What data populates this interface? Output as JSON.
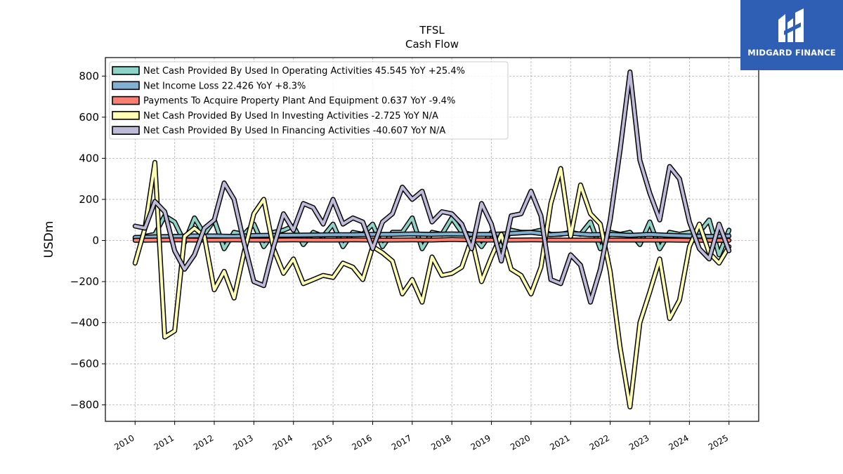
{
  "chart_data": {
    "type": "line",
    "title": "TFSL",
    "subtitle": "Cash Flow",
    "ylabel": "USDm",
    "xlabel": "",
    "ylim": [
      -880,
      890
    ],
    "xlim": [
      2009.25,
      2025.75
    ],
    "yticks": [
      -800,
      -600,
      -400,
      -200,
      0,
      200,
      400,
      600,
      800
    ],
    "ytick_labels": [
      "−800",
      "−600",
      "−400",
      "−200",
      "0",
      "200",
      "400",
      "600",
      "800"
    ],
    "xticks": [
      2010,
      2011,
      2012,
      2013,
      2014,
      2015,
      2016,
      2017,
      2018,
      2019,
      2020,
      2021,
      2022,
      2023,
      2024,
      2025
    ],
    "xtick_labels": [
      "2010",
      "2011",
      "2012",
      "2013",
      "2014",
      "2015",
      "2016",
      "2017",
      "2018",
      "2019",
      "2020",
      "2021",
      "2022",
      "2023",
      "2024",
      "2025"
    ],
    "grid": true,
    "legend_position": "top-left",
    "series": [
      {
        "name": "Net Cash Provided By Used In Operating Activities",
        "legend": "Net Cash Provided By Used In Operating Activities  45.545 YoY +25.4%",
        "color": "#8dd3c7",
        "points": [
          [
            2010,
            10
          ],
          [
            2010.25,
            20
          ],
          [
            2010.5,
            30
          ],
          [
            2010.75,
            120
          ],
          [
            2011,
            90
          ],
          [
            2011.25,
            -10
          ],
          [
            2011.5,
            110
          ],
          [
            2011.75,
            30
          ],
          [
            2012,
            100
          ],
          [
            2012.25,
            -40
          ],
          [
            2012.5,
            40
          ],
          [
            2012.75,
            30
          ],
          [
            2013,
            80
          ],
          [
            2013.25,
            -30
          ],
          [
            2013.5,
            40
          ],
          [
            2013.75,
            50
          ],
          [
            2014,
            70
          ],
          [
            2014.25,
            -20
          ],
          [
            2014.5,
            40
          ],
          [
            2014.75,
            20
          ],
          [
            2015,
            80
          ],
          [
            2015.25,
            -30
          ],
          [
            2015.5,
            40
          ],
          [
            2015.75,
            30
          ],
          [
            2016,
            80
          ],
          [
            2016.25,
            -30
          ],
          [
            2016.5,
            40
          ],
          [
            2016.75,
            40
          ],
          [
            2017,
            110
          ],
          [
            2017.25,
            -40
          ],
          [
            2017.5,
            40
          ],
          [
            2017.75,
            30
          ],
          [
            2018,
            110
          ],
          [
            2018.25,
            40
          ],
          [
            2018.5,
            30
          ],
          [
            2018.75,
            -30
          ],
          [
            2019,
            40
          ],
          [
            2019.25,
            -30
          ],
          [
            2019.5,
            50
          ],
          [
            2019.75,
            40
          ],
          [
            2020,
            40
          ],
          [
            2020.25,
            50
          ],
          [
            2020.5,
            30
          ],
          [
            2020.75,
            30
          ],
          [
            2021,
            40
          ],
          [
            2021.25,
            30
          ],
          [
            2021.5,
            90
          ],
          [
            2021.75,
            -40
          ],
          [
            2022,
            40
          ],
          [
            2022.25,
            30
          ],
          [
            2022.5,
            40
          ],
          [
            2022.75,
            -20
          ],
          [
            2023,
            90
          ],
          [
            2023.25,
            -40
          ],
          [
            2023.5,
            40
          ],
          [
            2023.75,
            30
          ],
          [
            2024,
            40
          ],
          [
            2024.25,
            40
          ],
          [
            2024.5,
            100
          ],
          [
            2024.75,
            -70
          ],
          [
            2025,
            50
          ]
        ]
      },
      {
        "name": "Net Income Loss",
        "legend": "Net Income Loss  22.426 YoY +8.3%",
        "color": "#80b1d3",
        "points": [
          [
            2010,
            15
          ],
          [
            2010.5,
            18
          ],
          [
            2011,
            20
          ],
          [
            2011.5,
            22
          ],
          [
            2012,
            22
          ],
          [
            2012.5,
            20
          ],
          [
            2013,
            24
          ],
          [
            2013.5,
            25
          ],
          [
            2014,
            26
          ],
          [
            2014.5,
            27
          ],
          [
            2015,
            28
          ],
          [
            2015.5,
            28
          ],
          [
            2016,
            30
          ],
          [
            2016.5,
            30
          ],
          [
            2017,
            32
          ],
          [
            2017.5,
            30
          ],
          [
            2018,
            32
          ],
          [
            2018.5,
            30
          ],
          [
            2019,
            30
          ],
          [
            2019.5,
            34
          ],
          [
            2020,
            40
          ],
          [
            2020.5,
            28
          ],
          [
            2021,
            35
          ],
          [
            2021.5,
            28
          ],
          [
            2022,
            30
          ],
          [
            2022.5,
            25
          ],
          [
            2023,
            30
          ],
          [
            2023.5,
            25
          ],
          [
            2024,
            22
          ],
          [
            2024.5,
            20
          ],
          [
            2025,
            22
          ]
        ]
      },
      {
        "name": "Payments To Acquire Property Plant And Equipment",
        "legend": "Payments To Acquire Property Plant And Equipment  0.637 YoY -9.4%",
        "color": "#fb8072",
        "points": [
          [
            2010,
            1
          ],
          [
            2010.5,
            2
          ],
          [
            2011,
            3
          ],
          [
            2011.5,
            2
          ],
          [
            2012,
            2
          ],
          [
            2012.5,
            3
          ],
          [
            2013,
            2
          ],
          [
            2013.5,
            2
          ],
          [
            2014,
            3
          ],
          [
            2014.5,
            2
          ],
          [
            2015,
            2
          ],
          [
            2015.5,
            3
          ],
          [
            2016,
            2
          ],
          [
            2016.5,
            2
          ],
          [
            2017,
            3
          ],
          [
            2017.5,
            2
          ],
          [
            2018,
            5
          ],
          [
            2018.5,
            3
          ],
          [
            2019,
            2
          ],
          [
            2019.5,
            2
          ],
          [
            2020,
            3
          ],
          [
            2020.5,
            2
          ],
          [
            2021,
            2
          ],
          [
            2021.5,
            2
          ],
          [
            2022,
            2
          ],
          [
            2022.5,
            2
          ],
          [
            2023,
            2
          ],
          [
            2023.5,
            2
          ],
          [
            2024,
            1
          ],
          [
            2024.5,
            1
          ],
          [
            2025,
            1
          ]
        ]
      },
      {
        "name": "Net Cash Provided By Used In Investing Activities",
        "legend": "Net Cash Provided By Used In Investing Activities  -2.725 YoY N/A",
        "color": "#ffffb3",
        "points": [
          [
            2010,
            -110
          ],
          [
            2010.25,
            60
          ],
          [
            2010.5,
            380
          ],
          [
            2010.75,
            -470
          ],
          [
            2011,
            -440
          ],
          [
            2011.25,
            20
          ],
          [
            2011.5,
            60
          ],
          [
            2011.75,
            20
          ],
          [
            2012,
            -240
          ],
          [
            2012.25,
            -150
          ],
          [
            2012.5,
            -280
          ],
          [
            2012.75,
            -60
          ],
          [
            2013,
            130
          ],
          [
            2013.25,
            200
          ],
          [
            2013.5,
            -40
          ],
          [
            2013.75,
            -160
          ],
          [
            2014,
            -90
          ],
          [
            2014.25,
            -210
          ],
          [
            2014.5,
            -190
          ],
          [
            2014.75,
            -170
          ],
          [
            2015,
            -180
          ],
          [
            2015.25,
            -110
          ],
          [
            2015.5,
            -130
          ],
          [
            2015.75,
            -190
          ],
          [
            2016,
            -30
          ],
          [
            2016.25,
            -60
          ],
          [
            2016.5,
            -100
          ],
          [
            2016.75,
            -260
          ],
          [
            2017,
            -190
          ],
          [
            2017.25,
            -300
          ],
          [
            2017.5,
            -80
          ],
          [
            2017.75,
            -170
          ],
          [
            2018,
            -160
          ],
          [
            2018.25,
            -130
          ],
          [
            2018.5,
            10
          ],
          [
            2018.75,
            -200
          ],
          [
            2019,
            -80
          ],
          [
            2019.25,
            30
          ],
          [
            2019.5,
            -140
          ],
          [
            2019.75,
            -170
          ],
          [
            2020,
            -260
          ],
          [
            2020.25,
            -130
          ],
          [
            2020.5,
            180
          ],
          [
            2020.75,
            350
          ],
          [
            2021,
            20
          ],
          [
            2021.25,
            270
          ],
          [
            2021.5,
            130
          ],
          [
            2021.75,
            80
          ],
          [
            2022,
            -150
          ],
          [
            2022.25,
            -520
          ],
          [
            2022.5,
            -810
          ],
          [
            2022.75,
            -400
          ],
          [
            2023,
            -250
          ],
          [
            2023.25,
            -90
          ],
          [
            2023.5,
            -380
          ],
          [
            2023.75,
            -290
          ],
          [
            2024,
            -30
          ],
          [
            2024.25,
            80
          ],
          [
            2024.5,
            -60
          ],
          [
            2024.75,
            -110
          ],
          [
            2025,
            -30
          ]
        ]
      },
      {
        "name": "Net Cash Provided By Used In Financing Activities",
        "legend": "Net Cash Provided By Used In Financing Activities  -40.607 YoY N/A",
        "color": "#bebada",
        "points": [
          [
            2010,
            70
          ],
          [
            2010.25,
            60
          ],
          [
            2010.5,
            190
          ],
          [
            2010.75,
            140
          ],
          [
            2011,
            -50
          ],
          [
            2011.25,
            -140
          ],
          [
            2011.5,
            -70
          ],
          [
            2011.75,
            60
          ],
          [
            2012,
            100
          ],
          [
            2012.25,
            280
          ],
          [
            2012.5,
            200
          ],
          [
            2012.75,
            -10
          ],
          [
            2013,
            -200
          ],
          [
            2013.25,
            -220
          ],
          [
            2013.5,
            -30
          ],
          [
            2013.75,
            130
          ],
          [
            2014,
            50
          ],
          [
            2014.25,
            180
          ],
          [
            2014.5,
            160
          ],
          [
            2014.75,
            80
          ],
          [
            2015,
            200
          ],
          [
            2015.25,
            80
          ],
          [
            2015.5,
            110
          ],
          [
            2015.75,
            90
          ],
          [
            2016,
            -40
          ],
          [
            2016.25,
            90
          ],
          [
            2016.5,
            130
          ],
          [
            2016.75,
            260
          ],
          [
            2017,
            200
          ],
          [
            2017.25,
            240
          ],
          [
            2017.5,
            90
          ],
          [
            2017.75,
            140
          ],
          [
            2018,
            130
          ],
          [
            2018.25,
            80
          ],
          [
            2018.5,
            -40
          ],
          [
            2018.75,
            180
          ],
          [
            2019,
            80
          ],
          [
            2019.25,
            -100
          ],
          [
            2019.5,
            120
          ],
          [
            2019.75,
            130
          ],
          [
            2020,
            240
          ],
          [
            2020.25,
            120
          ],
          [
            2020.5,
            -190
          ],
          [
            2020.75,
            -210
          ],
          [
            2021,
            -70
          ],
          [
            2021.25,
            -120
          ],
          [
            2021.5,
            -300
          ],
          [
            2021.75,
            -140
          ],
          [
            2022,
            100
          ],
          [
            2022.25,
            440
          ],
          [
            2022.5,
            820
          ],
          [
            2022.75,
            390
          ],
          [
            2023,
            230
          ],
          [
            2023.25,
            100
          ],
          [
            2023.5,
            360
          ],
          [
            2023.75,
            300
          ],
          [
            2024,
            90
          ],
          [
            2024.25,
            -40
          ],
          [
            2024.5,
            -90
          ],
          [
            2024.75,
            80
          ],
          [
            2025,
            -50
          ]
        ]
      }
    ]
  },
  "logo": {
    "text": "MIDGARD FINANCE",
    "icon": "midgard-finance-logo-icon",
    "color": "#2f5fb4"
  }
}
